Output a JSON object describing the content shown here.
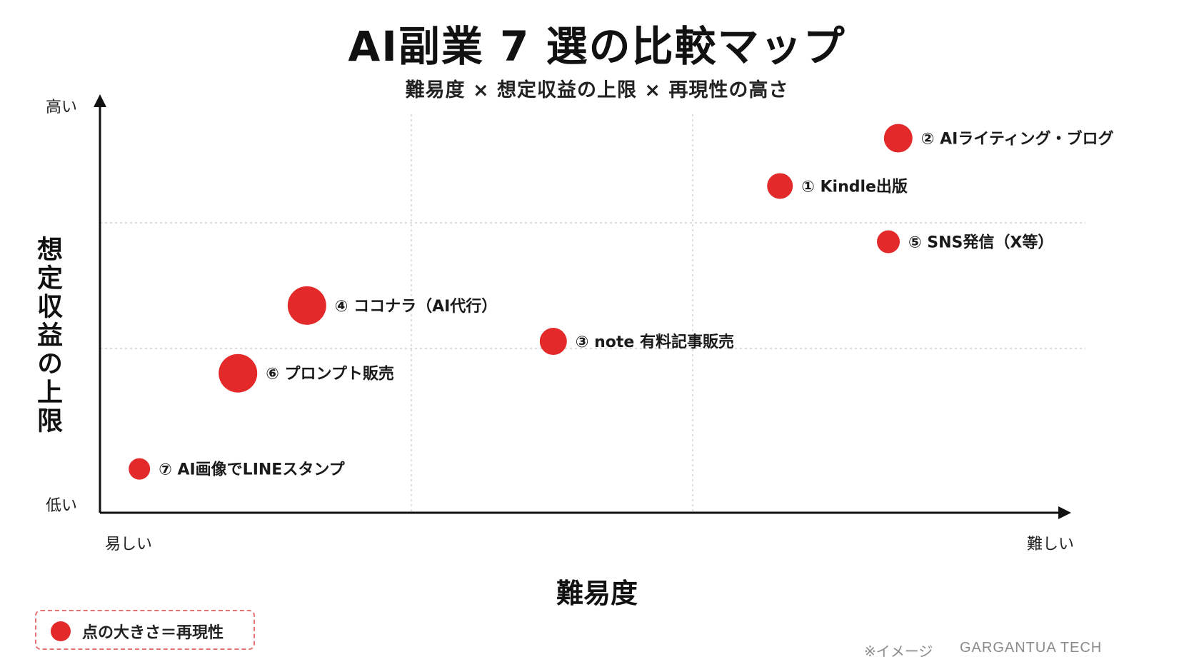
{
  "header": {
    "title": "AI副業 7 選の比較マップ",
    "subtitle": "難易度 × 想定収益の上限 × 再現性の高さ"
  },
  "axes": {
    "ylabel": "想定収益の上限",
    "xlabel": "難易度",
    "y_high": "高い",
    "y_low": "低い",
    "x_low": "易しい",
    "x_high": "難しい"
  },
  "legend": {
    "text": "点の大きさ＝再現性"
  },
  "footer": {
    "note": "※イメージ",
    "brand": "GARGANTUA TECH"
  },
  "colors": {
    "dot": "#e32929",
    "axis": "#111111",
    "grid": "#c8c8c8"
  },
  "chart_data": {
    "type": "scatter",
    "title": "AI副業 7 選の比較マップ",
    "subtitle": "難易度 × 想定収益の上限 × 再現性の高さ",
    "xlabel": "難易度",
    "ylabel": "想定収益の上限",
    "xlim": [
      0,
      100
    ],
    "ylim": [
      0,
      100
    ],
    "grid": true,
    "legend": "bottom-left",
    "size_encodes": "点の大きさ＝再現性",
    "points": [
      {
        "label": "① Kindle出版",
        "x": 69,
        "y": 82,
        "size": 36
      },
      {
        "label": "② AIライティング・ブログ",
        "x": 81,
        "y": 94,
        "size": 40
      },
      {
        "label": "③ note 有料記事販売",
        "x": 46,
        "y": 43,
        "size": 38
      },
      {
        "label": "④ ココナラ（AI代行）",
        "x": 21,
        "y": 52,
        "size": 54
      },
      {
        "label": "⑤ SNS発信（X等）",
        "x": 80,
        "y": 68,
        "size": 32
      },
      {
        "label": "⑥ プロンプト販売",
        "x": 14,
        "y": 35,
        "size": 54
      },
      {
        "label": "⑦ AI画像でLINEスタンプ",
        "x": 4,
        "y": 11,
        "size": 30
      }
    ]
  }
}
